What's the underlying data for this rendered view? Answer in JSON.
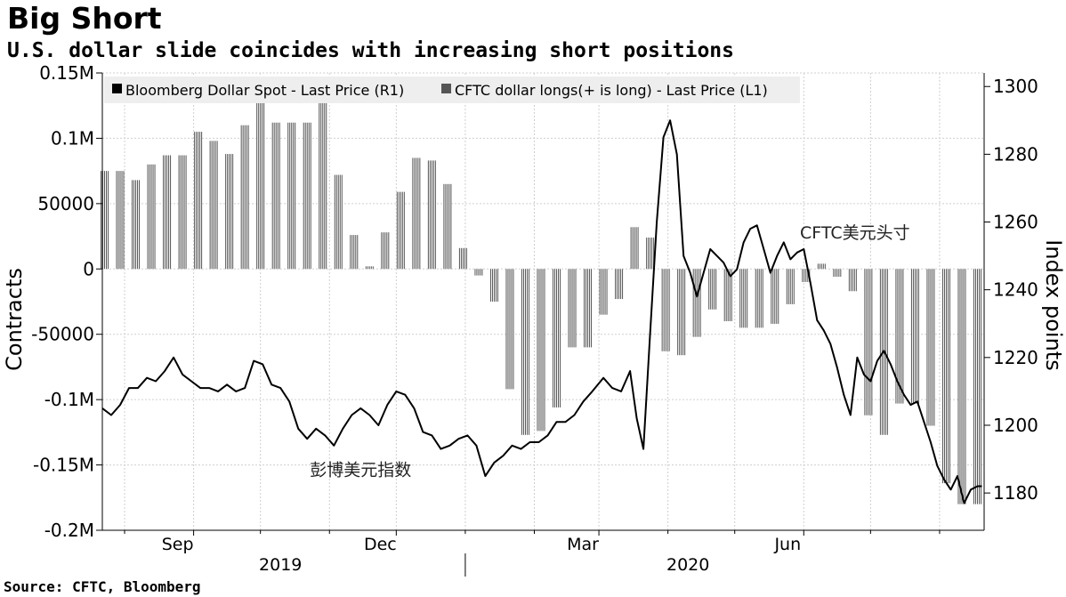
{
  "title": "Big Short",
  "subtitle": "U.S. dollar slide coincides with increasing short positions",
  "source": "Source: CFTC, Bloomberg",
  "chart_data": {
    "type": "bar+line",
    "left_axis": {
      "label": "Contracts",
      "range": [
        -200000,
        150000
      ],
      "ticks": [
        {
          "value": 150000,
          "label": "0.15M"
        },
        {
          "value": 100000,
          "label": "0.1M"
        },
        {
          "value": 50000,
          "label": "50000"
        },
        {
          "value": 0,
          "label": "0"
        },
        {
          "value": -50000,
          "label": "-50000"
        },
        {
          "value": -100000,
          "label": "-0.1M"
        },
        {
          "value": -150000,
          "label": "-0.15M"
        },
        {
          "value": -200000,
          "label": "-0.2M"
        }
      ]
    },
    "right_axis": {
      "label": "Index points",
      "range": [
        1169,
        1304
      ],
      "ticks": [
        {
          "value": 1300,
          "label": "1300"
        },
        {
          "value": 1280,
          "label": "1280"
        },
        {
          "value": 1260,
          "label": "1260"
        },
        {
          "value": 1240,
          "label": "1240"
        },
        {
          "value": 1220,
          "label": "1220"
        },
        {
          "value": 1200,
          "label": "1200"
        },
        {
          "value": 1180,
          "label": "1180"
        }
      ]
    },
    "x_axis": {
      "range": [
        "2019-07-22",
        "2020-08-21"
      ],
      "month_labels": [
        {
          "date": "2019-09-01",
          "label": "Sep"
        },
        {
          "date": "2019-12-01",
          "label": "Dec"
        },
        {
          "date": "2020-03-01",
          "label": "Mar"
        },
        {
          "date": "2020-06-01",
          "label": "Jun"
        }
      ],
      "year_labels": [
        {
          "date": "2019-10-10",
          "label": "2019"
        },
        {
          "date": "2020-04-10",
          "label": "2020"
        }
      ],
      "gridlines": [
        "2019-08-01",
        "2019-10-01",
        "2019-11-01",
        "2020-01-01",
        "2020-02-01",
        "2020-04-01",
        "2020-05-01",
        "2020-07-01",
        "2020-08-01"
      ],
      "year_divider": "2020-01-01"
    },
    "legend": {
      "placement": "top-left",
      "entries": [
        {
          "name": "Bloomberg Dollar Spot - Last Price (R1)",
          "color": "#000000"
        },
        {
          "name": "CFTC dollar longs(+ is long) - Last Price (L1)",
          "color": "#555555"
        }
      ]
    },
    "annotations": [
      {
        "text": "CFTC美元头寸",
        "date": "2020-06-24",
        "value": 1257
      },
      {
        "text": "彭博美元指数",
        "date": "2019-11-15",
        "value": 1187
      }
    ],
    "grid": true,
    "series": [
      {
        "name": "CFTC dollar longs(+ is long) - Last Price (L1)",
        "axis": "left",
        "type": "bar",
        "color": "#555555",
        "points": [
          [
            "2019-07-23",
            75000
          ],
          [
            "2019-07-30",
            75000
          ],
          [
            "2019-08-06",
            68000
          ],
          [
            "2019-08-13",
            80000
          ],
          [
            "2019-08-20",
            87000
          ],
          [
            "2019-08-27",
            87000
          ],
          [
            "2019-09-03",
            105000
          ],
          [
            "2019-09-10",
            98000
          ],
          [
            "2019-09-17",
            88000
          ],
          [
            "2019-09-24",
            110000
          ],
          [
            "2019-10-01",
            128000
          ],
          [
            "2019-10-08",
            112000
          ],
          [
            "2019-10-15",
            112000
          ],
          [
            "2019-10-22",
            112000
          ],
          [
            "2019-10-29",
            128000
          ],
          [
            "2019-11-05",
            72000
          ],
          [
            "2019-11-12",
            26000
          ],
          [
            "2019-11-19",
            2000
          ],
          [
            "2019-11-26",
            28000
          ],
          [
            "2019-12-03",
            59000
          ],
          [
            "2019-12-10",
            85000
          ],
          [
            "2019-12-17",
            83000
          ],
          [
            "2019-12-24",
            65000
          ],
          [
            "2019-12-31",
            16000
          ],
          [
            "2020-01-07",
            -5000
          ],
          [
            "2020-01-14",
            -25000
          ],
          [
            "2020-01-21",
            -92000
          ],
          [
            "2020-01-28",
            -127000
          ],
          [
            "2020-02-04",
            -124000
          ],
          [
            "2020-02-11",
            -106000
          ],
          [
            "2020-02-18",
            -60000
          ],
          [
            "2020-02-25",
            -60000
          ],
          [
            "2020-03-03",
            -35000
          ],
          [
            "2020-03-10",
            -23000
          ],
          [
            "2020-03-17",
            32000
          ],
          [
            "2020-03-24",
            24000
          ],
          [
            "2020-03-31",
            -63000
          ],
          [
            "2020-04-07",
            -66000
          ],
          [
            "2020-04-14",
            -52000
          ],
          [
            "2020-04-21",
            -31000
          ],
          [
            "2020-04-28",
            -40000
          ],
          [
            "2020-05-05",
            -45000
          ],
          [
            "2020-05-12",
            -45000
          ],
          [
            "2020-05-19",
            -42000
          ],
          [
            "2020-05-26",
            -27000
          ],
          [
            "2020-06-02",
            -10000
          ],
          [
            "2020-06-09",
            4000
          ],
          [
            "2020-06-16",
            -6000
          ],
          [
            "2020-06-23",
            -17000
          ],
          [
            "2020-06-30",
            -112000
          ],
          [
            "2020-07-07",
            -127000
          ],
          [
            "2020-07-14",
            -103000
          ],
          [
            "2020-07-21",
            -103000
          ],
          [
            "2020-07-28",
            -120000
          ],
          [
            "2020-08-04",
            -164000
          ],
          [
            "2020-08-11",
            -180000
          ],
          [
            "2020-08-18",
            -180000
          ]
        ]
      },
      {
        "name": "Bloomberg Dollar Spot - Last Price (R1)",
        "axis": "right",
        "type": "line",
        "color": "#000000",
        "points": [
          [
            "2019-07-22",
            1205
          ],
          [
            "2019-07-26",
            1203
          ],
          [
            "2019-07-30",
            1206
          ],
          [
            "2019-08-03",
            1211
          ],
          [
            "2019-08-07",
            1211
          ],
          [
            "2019-08-11",
            1214
          ],
          [
            "2019-08-15",
            1213
          ],
          [
            "2019-08-19",
            1216
          ],
          [
            "2019-08-23",
            1220
          ],
          [
            "2019-08-27",
            1215
          ],
          [
            "2019-08-31",
            1213
          ],
          [
            "2019-09-04",
            1211
          ],
          [
            "2019-09-08",
            1211
          ],
          [
            "2019-09-12",
            1210
          ],
          [
            "2019-09-16",
            1212
          ],
          [
            "2019-09-20",
            1210
          ],
          [
            "2019-09-24",
            1211
          ],
          [
            "2019-09-28",
            1219
          ],
          [
            "2019-10-02",
            1218
          ],
          [
            "2019-10-06",
            1212
          ],
          [
            "2019-10-10",
            1211
          ],
          [
            "2019-10-14",
            1207
          ],
          [
            "2019-10-18",
            1199
          ],
          [
            "2019-10-22",
            1196
          ],
          [
            "2019-10-26",
            1199
          ],
          [
            "2019-10-30",
            1197
          ],
          [
            "2019-11-03",
            1194
          ],
          [
            "2019-11-07",
            1199
          ],
          [
            "2019-11-11",
            1203
          ],
          [
            "2019-11-15",
            1205
          ],
          [
            "2019-11-19",
            1203
          ],
          [
            "2019-11-23",
            1200
          ],
          [
            "2019-11-27",
            1206
          ],
          [
            "2019-12-01",
            1210
          ],
          [
            "2019-12-05",
            1209
          ],
          [
            "2019-12-09",
            1205
          ],
          [
            "2019-12-13",
            1198
          ],
          [
            "2019-12-17",
            1197
          ],
          [
            "2019-12-21",
            1193
          ],
          [
            "2019-12-25",
            1194
          ],
          [
            "2019-12-29",
            1196
          ],
          [
            "2020-01-02",
            1197
          ],
          [
            "2020-01-06",
            1194
          ],
          [
            "2020-01-10",
            1185
          ],
          [
            "2020-01-14",
            1189
          ],
          [
            "2020-01-18",
            1191
          ],
          [
            "2020-01-22",
            1194
          ],
          [
            "2020-01-26",
            1193
          ],
          [
            "2020-01-30",
            1195
          ],
          [
            "2020-02-03",
            1195
          ],
          [
            "2020-02-07",
            1197
          ],
          [
            "2020-02-11",
            1201
          ],
          [
            "2020-02-15",
            1201
          ],
          [
            "2020-02-19",
            1203
          ],
          [
            "2020-02-23",
            1207
          ],
          [
            "2020-02-27",
            1210
          ],
          [
            "2020-03-03",
            1214
          ],
          [
            "2020-03-07",
            1211
          ],
          [
            "2020-03-11",
            1210
          ],
          [
            "2020-03-15",
            1216
          ],
          [
            "2020-03-18",
            1202
          ],
          [
            "2020-03-21",
            1193
          ],
          [
            "2020-03-24",
            1227
          ],
          [
            "2020-03-27",
            1260
          ],
          [
            "2020-03-30",
            1285
          ],
          [
            "2020-04-02",
            1290
          ],
          [
            "2020-04-05",
            1280
          ],
          [
            "2020-04-08",
            1250
          ],
          [
            "2020-04-11",
            1245
          ],
          [
            "2020-04-14",
            1238
          ],
          [
            "2020-04-17",
            1245
          ],
          [
            "2020-04-20",
            1252
          ],
          [
            "2020-04-23",
            1250
          ],
          [
            "2020-04-26",
            1248
          ],
          [
            "2020-04-29",
            1244
          ],
          [
            "2020-05-02",
            1246
          ],
          [
            "2020-05-05",
            1254
          ],
          [
            "2020-05-08",
            1258
          ],
          [
            "2020-05-11",
            1259
          ],
          [
            "2020-05-14",
            1252
          ],
          [
            "2020-05-17",
            1245
          ],
          [
            "2020-05-20",
            1250
          ],
          [
            "2020-05-23",
            1254
          ],
          [
            "2020-05-26",
            1249
          ],
          [
            "2020-05-29",
            1251
          ],
          [
            "2020-06-01",
            1252
          ],
          [
            "2020-06-04",
            1242
          ],
          [
            "2020-06-07",
            1231
          ],
          [
            "2020-06-10",
            1228
          ],
          [
            "2020-06-13",
            1224
          ],
          [
            "2020-06-16",
            1217
          ],
          [
            "2020-06-19",
            1209
          ],
          [
            "2020-06-22",
            1203
          ],
          [
            "2020-06-25",
            1220
          ],
          [
            "2020-06-28",
            1215
          ],
          [
            "2020-07-01",
            1213
          ],
          [
            "2020-07-04",
            1219
          ],
          [
            "2020-07-07",
            1222
          ],
          [
            "2020-07-10",
            1218
          ],
          [
            "2020-07-13",
            1213
          ],
          [
            "2020-07-16",
            1209
          ],
          [
            "2020-07-19",
            1206
          ],
          [
            "2020-07-22",
            1207
          ],
          [
            "2020-07-25",
            1201
          ],
          [
            "2020-07-28",
            1195
          ],
          [
            "2020-07-31",
            1188
          ],
          [
            "2020-08-03",
            1184
          ],
          [
            "2020-08-06",
            1181
          ],
          [
            "2020-08-09",
            1185
          ],
          [
            "2020-08-12",
            1177
          ],
          [
            "2020-08-15",
            1181
          ],
          [
            "2020-08-18",
            1182
          ],
          [
            "2020-08-20",
            1182
          ]
        ]
      }
    ]
  }
}
